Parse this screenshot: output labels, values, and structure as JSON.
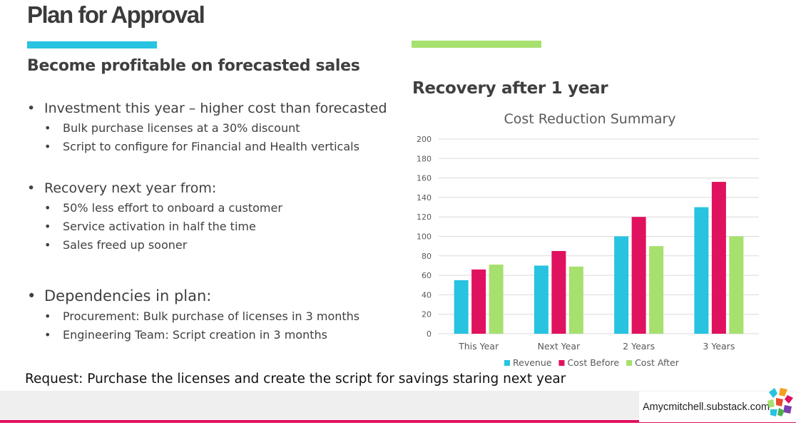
{
  "slide": {
    "title": "Plan for Approval",
    "subheading": "Become profitable on forecasted sales",
    "chart_heading": "Recovery after 1 year",
    "request": "Request: Purchase the licenses and create the script for savings staring next year",
    "footer": "Amycmitchell.substack.com",
    "colors": {
      "accent_blue": "#27c3e1",
      "accent_green": "#a6e06e",
      "accent_pink": "#e0115f"
    }
  },
  "bullets": [
    {
      "text": "Investment this year – higher cost than forecasted",
      "children": [
        "Bulk purchase licenses at a 30% discount",
        "Script to configure for Financial and Health verticals"
      ]
    },
    {
      "text": "Recovery next year from:",
      "children": [
        "50% less effort to onboard a customer",
        "Service activation in half the time",
        "Sales freed up sooner"
      ]
    },
    {
      "text": "Dependencies in plan:",
      "children": [
        "Procurement: Bulk purchase of licenses in 3 months",
        "Engineering Team: Script creation in 3 months"
      ]
    }
  ],
  "chart_data": {
    "type": "bar",
    "title": "Cost Reduction Summary",
    "xlabel": "",
    "ylabel": "",
    "categories": [
      "This Year",
      "Next Year",
      "2 Years",
      "3 Years"
    ],
    "series": [
      {
        "name": "Revenue",
        "color": "#27c3e1",
        "values": [
          55,
          70,
          100,
          130
        ]
      },
      {
        "name": "Cost Before",
        "color": "#e0115f",
        "values": [
          66,
          85,
          120,
          156
        ]
      },
      {
        "name": "Cost After",
        "color": "#a6e06e",
        "values": [
          71,
          69,
          90,
          100
        ]
      }
    ],
    "ylim": [
      0,
      200
    ],
    "yticks": [
      "0",
      "20",
      "40",
      "60",
      "80",
      "100",
      "120",
      "140",
      "160",
      "180",
      "200"
    ],
    "grid": true,
    "legend": "bottom"
  }
}
